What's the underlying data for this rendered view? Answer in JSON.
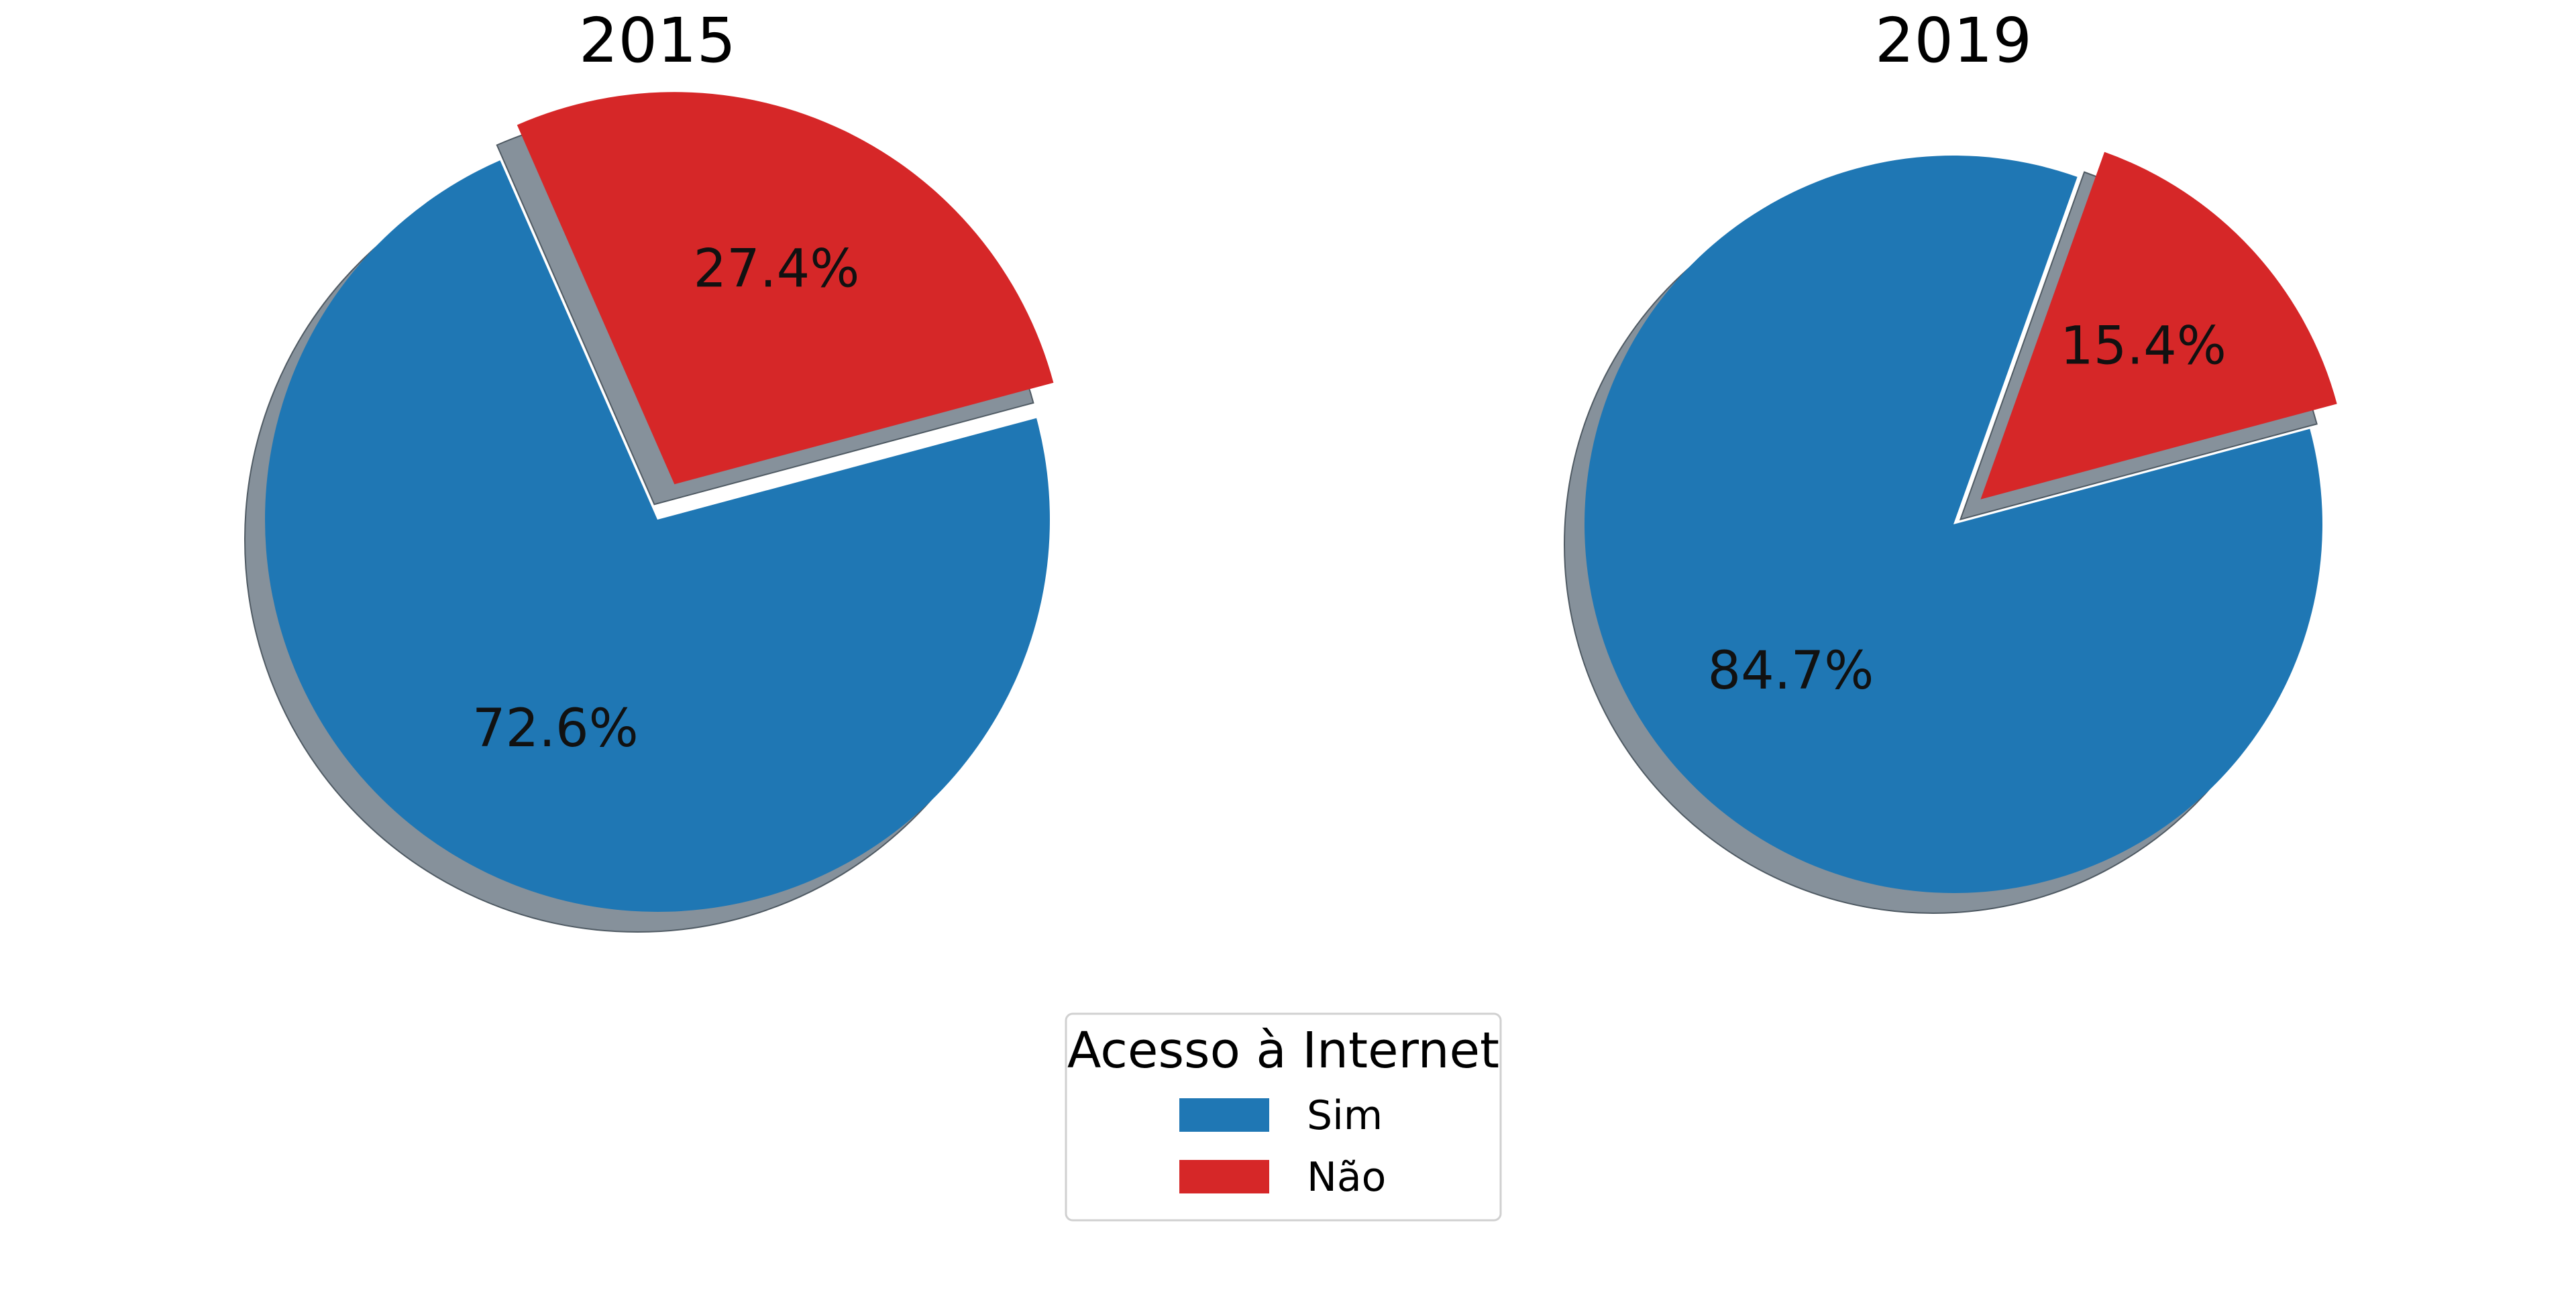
{
  "chart_data": [
    {
      "type": "pie",
      "title": "2015",
      "labels": [
        "Sim",
        "Não"
      ],
      "values": [
        72.6,
        27.4
      ],
      "value_labels": [
        "72.6%",
        "27.4%"
      ],
      "colors": [
        "#1f77b4",
        "#d62728"
      ],
      "explode": [
        0.0,
        0.1
      ],
      "shadow": true,
      "start_angle_deg": -15,
      "direction": "clockwise"
    },
    {
      "type": "pie",
      "title": "2019",
      "labels": [
        "Sim",
        "Não"
      ],
      "values": [
        84.7,
        15.4
      ],
      "value_labels": [
        "84.7%",
        "15.4%"
      ],
      "colors": [
        "#1f77b4",
        "#d62728"
      ],
      "explode": [
        0.0,
        0.1
      ],
      "shadow": true,
      "start_angle_deg": -15,
      "direction": "clockwise"
    }
  ],
  "legend": {
    "title": "Acesso à Internet",
    "placement": "bottom-center",
    "items": [
      {
        "label": "Sim",
        "color": "#1f77b4"
      },
      {
        "label": "Não",
        "color": "#d62728"
      }
    ]
  }
}
